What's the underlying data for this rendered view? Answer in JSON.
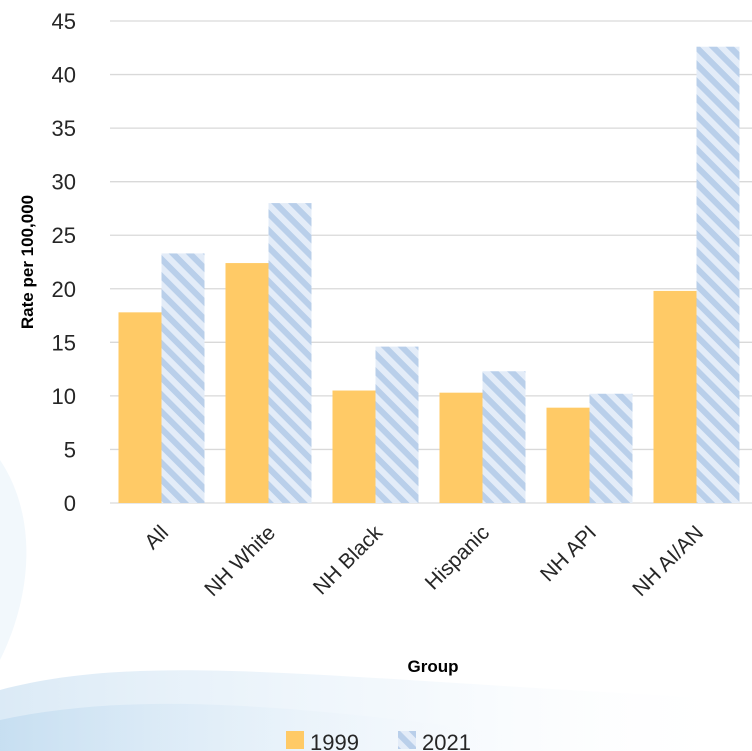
{
  "chart_data": {
    "type": "bar",
    "categories": [
      "All",
      "NH White",
      "NH Black",
      "Hispanic",
      "NH API",
      "NH AI/AN"
    ],
    "series": [
      {
        "name": "1999",
        "values": [
          17.8,
          22.4,
          10.5,
          10.3,
          8.9,
          19.8
        ],
        "color": "#FFCA66",
        "pattern": "solid"
      },
      {
        "name": "2021",
        "values": [
          23.3,
          28.0,
          14.6,
          12.3,
          10.2,
          42.6
        ],
        "color": "#C5D9F1",
        "pattern": "diagonal-stripes"
      }
    ],
    "xlabel": "Group",
    "ylabel": "Rate per 100,000",
    "ylim": [
      0,
      45
    ],
    "yticks": [
      0,
      5,
      10,
      15,
      20,
      25,
      30,
      35,
      40,
      45
    ],
    "grid": true,
    "legend_position": "bottom"
  },
  "colors": {
    "grid": "#D9D9D9",
    "text": "#262626",
    "stripe_light": "#E3ECF8",
    "stripe_dark": "#B9CFEA"
  }
}
